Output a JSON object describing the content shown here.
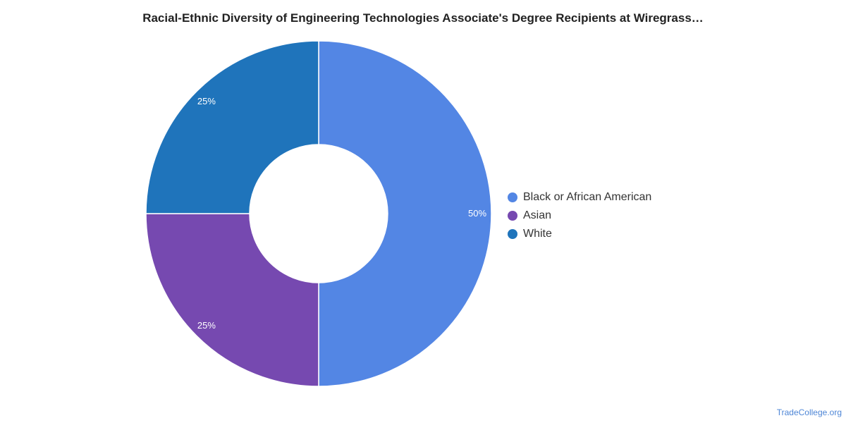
{
  "chart_data": {
    "type": "pie",
    "variant": "donut",
    "title": "Racial-Ethnic Diversity of Engineering Technologies Associate's Degree Recipients at Wiregrass…",
    "slices": [
      {
        "name": "Black or African American",
        "value": 50,
        "label": "50%",
        "color": "#5386e4"
      },
      {
        "name": "Asian",
        "value": 25,
        "label": "25%",
        "color": "#7649b0"
      },
      {
        "name": "White",
        "value": 25,
        "label": "25%",
        "color": "#1f74bb"
      }
    ],
    "legend_position": "right"
  },
  "credit": "TradeCollege.org"
}
